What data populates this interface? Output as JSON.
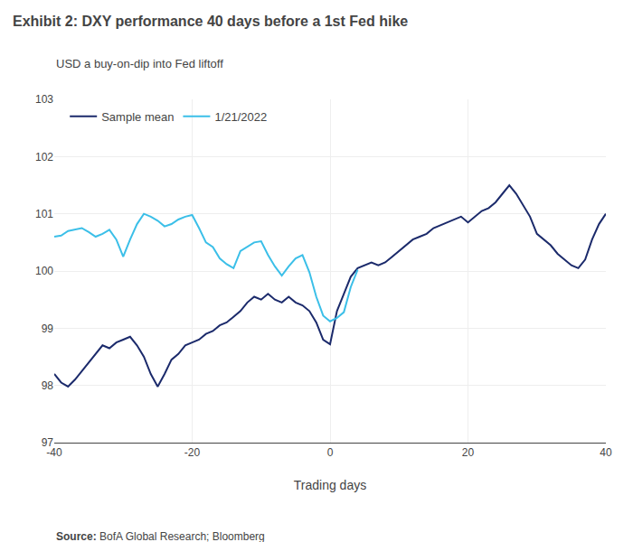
{
  "chart_data": {
    "type": "line",
    "title": "Exhibit 2: DXY performance 40 days before a 1st Fed hike",
    "subtitle": "USD a buy-on-dip into Fed liftoff",
    "xlabel": "Trading days",
    "annotations": [
      "Source:",
      "BofA Global Research; Bloomberg"
    ],
    "xlim": [
      -40,
      40
    ],
    "ylim": [
      97,
      103
    ],
    "xticks": [
      -40,
      -20,
      0,
      20,
      40
    ],
    "yticks": [
      97,
      98,
      99,
      100,
      101,
      102,
      103
    ],
    "grid": true,
    "legend": "upper left",
    "series": [
      {
        "name": "Sample mean",
        "color": "#1b2a6b",
        "x": [
          -40,
          -39,
          -38,
          -37,
          -36,
          -35,
          -34,
          -33,
          -32,
          -31,
          -30,
          -29,
          -28,
          -27,
          -26,
          -25,
          -24,
          -23,
          -22,
          -21,
          -20,
          -19,
          -18,
          -17,
          -16,
          -15,
          -14,
          -13,
          -12,
          -11,
          -10,
          -9,
          -8,
          -7,
          -6,
          -5,
          -4,
          -3,
          -2,
          -1,
          0,
          1,
          2,
          3,
          4,
          5,
          6,
          7,
          8,
          9,
          10,
          11,
          12,
          13,
          14,
          15,
          16,
          17,
          18,
          19,
          20,
          21,
          22,
          23,
          24,
          25,
          26,
          27,
          28,
          29,
          30,
          31,
          32,
          33,
          34,
          35,
          36,
          37,
          38,
          39,
          40
        ],
        "values": [
          98.2,
          98.05,
          97.98,
          98.1,
          98.25,
          98.4,
          98.55,
          98.7,
          98.65,
          98.75,
          98.8,
          98.85,
          98.7,
          98.5,
          98.2,
          97.98,
          98.2,
          98.45,
          98.55,
          98.7,
          98.75,
          98.8,
          98.9,
          98.95,
          99.05,
          99.1,
          99.2,
          99.3,
          99.45,
          99.55,
          99.5,
          99.6,
          99.5,
          99.45,
          99.55,
          99.45,
          99.4,
          99.3,
          99.1,
          98.8,
          98.72,
          99.3,
          99.6,
          99.9,
          100.05,
          100.1,
          100.15,
          100.1,
          100.15,
          100.25,
          100.35,
          100.45,
          100.55,
          100.6,
          100.65,
          100.75,
          100.8,
          100.85,
          100.9,
          100.95,
          100.85,
          100.95,
          101.05,
          101.1,
          101.2,
          101.35,
          101.5,
          101.35,
          101.15,
          100.95,
          100.65,
          100.55,
          100.45,
          100.3,
          100.2,
          100.1,
          100.05,
          100.2,
          100.55,
          100.82,
          101.0
        ]
      },
      {
        "name": "1/21/2022",
        "color": "#3bbfe8",
        "x": [
          -40,
          -39,
          -38,
          -37,
          -36,
          -35,
          -34,
          -33,
          -32,
          -31,
          -30,
          -29,
          -28,
          -27,
          -26,
          -25,
          -24,
          -23,
          -22,
          -21,
          -20,
          -19,
          -18,
          -17,
          -16,
          -15,
          -14,
          -13,
          -12,
          -11,
          -10,
          -9,
          -8,
          -7,
          -6,
          -5,
          -4,
          -3,
          -2,
          -1,
          0,
          1,
          2,
          3,
          4
        ],
        "values": [
          100.6,
          100.62,
          100.7,
          100.72,
          100.75,
          100.68,
          100.6,
          100.65,
          100.72,
          100.55,
          100.25,
          100.55,
          100.82,
          101.0,
          100.95,
          100.88,
          100.78,
          100.82,
          100.9,
          100.95,
          100.98,
          100.75,
          100.5,
          100.42,
          100.22,
          100.12,
          100.05,
          100.35,
          100.42,
          100.5,
          100.52,
          100.28,
          100.08,
          99.92,
          100.08,
          100.22,
          100.28,
          99.98,
          99.55,
          99.22,
          99.12,
          99.18,
          99.28,
          99.72,
          100.02
        ]
      }
    ]
  }
}
